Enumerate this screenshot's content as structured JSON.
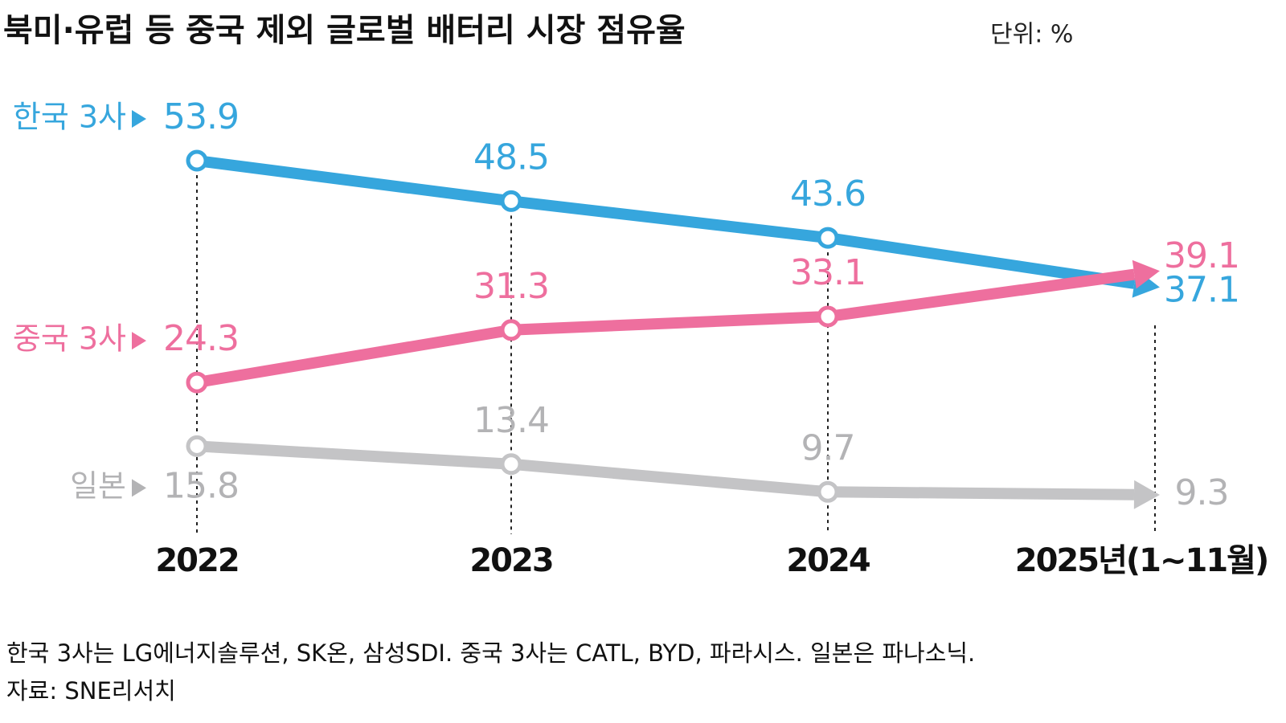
{
  "chart_data": {
    "type": "line",
    "title": "북미·유럽 등 중국 제외 글로벌 배터리 시장 점유율",
    "unit": "단위: %",
    "categories": [
      "2022",
      "2023",
      "2024",
      "2025년(1~11월)"
    ],
    "series": [
      {
        "name": "한국 3사",
        "color": "#36a6dd",
        "values": [
          53.9,
          48.5,
          43.6,
          37.1
        ]
      },
      {
        "name": "중국 3사",
        "color": "#ee6f9e",
        "values": [
          24.3,
          31.3,
          33.1,
          39.1
        ]
      },
      {
        "name": "일본",
        "color": "#c4c4c6",
        "values": [
          15.8,
          13.4,
          9.7,
          9.3
        ]
      }
    ],
    "note": "한국 3사는 LG에너지솔루션, SK온, 삼성SDI. 중국 3사는 CATL, BYD, 파라시스. 일본은 파나소닉.",
    "source": "자료: SNE리서치"
  }
}
